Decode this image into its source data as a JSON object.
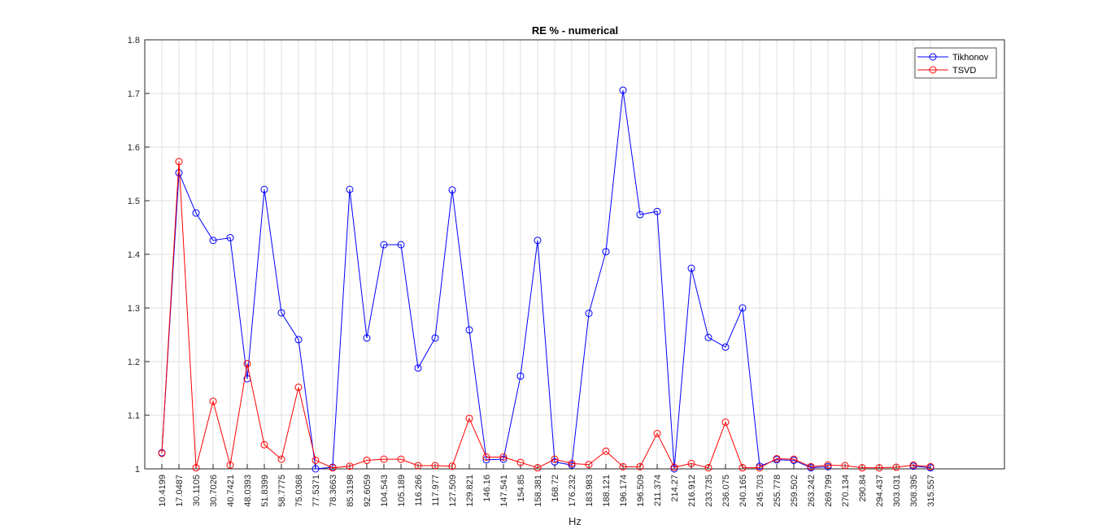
{
  "chart_data": {
    "type": "line",
    "title": "RE % - numerical",
    "xlabel": "Hz",
    "ylabel": "",
    "ylim": [
      1,
      1.8
    ],
    "yticks": [
      "1",
      "1.1",
      "1.2",
      "1.3",
      "1.4",
      "1.5",
      "1.6",
      "1.7",
      "1.8"
    ],
    "grid": true,
    "legend_position": "top-right",
    "categories": [
      "10.4199",
      "17.0487",
      "30.1105",
      "30.7026",
      "40.7421",
      "48.0393",
      "51.8399",
      "58.7775",
      "75.0368",
      "77.5371",
      "78.3663",
      "85.3198",
      "92.6059",
      "104.543",
      "105.189",
      "116.266",
      "117.977",
      "127.509",
      "129.821",
      "146.16",
      "147.541",
      "154.85",
      "158.381",
      "168.72",
      "176.232",
      "183.983",
      "188.121",
      "196.174",
      "196.509",
      "211.374",
      "214.27",
      "216.912",
      "233.735",
      "236.075",
      "240.165",
      "245.703",
      "255.778",
      "259.502",
      "263.242",
      "269.799",
      "270.134",
      "290.84",
      "294.437",
      "303.031",
      "308.395",
      "315.557"
    ],
    "series": [
      {
        "name": "Tikhonov",
        "color": "#0000ff",
        "values": [
          1.03,
          1.552,
          1.477,
          1.426,
          1.431,
          1.168,
          1.521,
          1.291,
          1.241,
          1.0,
          1.003,
          1.521,
          1.244,
          1.418,
          1.418,
          1.188,
          1.244,
          1.52,
          1.259,
          1.017,
          1.018,
          1.173,
          1.426,
          1.013,
          1.007,
          1.29,
          1.405,
          1.706,
          1.474,
          1.48,
          1.0,
          1.374,
          1.245,
          1.227,
          1.3,
          1.005,
          1.017,
          1.016,
          1.002,
          1.004,
          null,
          null,
          null,
          null,
          1.005,
          1.002
        ]
      },
      {
        "name": "TSVD",
        "color": "#ff0000",
        "values": [
          1.029,
          1.573,
          1.002,
          1.126,
          1.007,
          1.196,
          1.045,
          1.018,
          1.152,
          1.016,
          1.002,
          1.005,
          1.016,
          1.018,
          1.018,
          1.006,
          1.006,
          1.005,
          1.094,
          1.022,
          1.022,
          1.012,
          1.002,
          1.018,
          1.01,
          1.008,
          1.033,
          1.004,
          1.004,
          1.066,
          1.003,
          1.01,
          1.002,
          1.087,
          1.002,
          1.002,
          1.019,
          1.018,
          1.004,
          1.007,
          1.006,
          1.002,
          1.002,
          1.003,
          1.007,
          1.004
        ]
      }
    ]
  }
}
